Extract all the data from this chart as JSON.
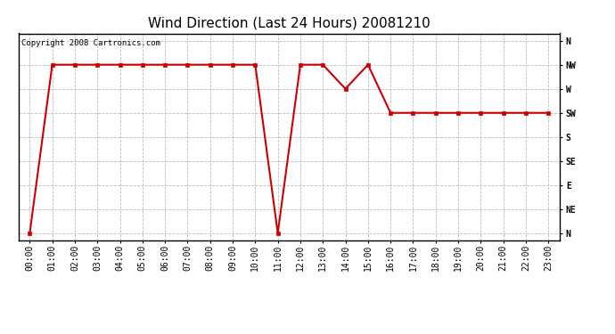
{
  "title": "Wind Direction (Last 24 Hours) 20081210",
  "copyright": "Copyright 2008 Cartronics.com",
  "background_color": "#ffffff",
  "plot_bg_color": "#ffffff",
  "line_color": "#cc0000",
  "marker_color": "#cc0000",
  "grid_color": "#bbbbbb",
  "directions": [
    "N",
    "NE",
    "E",
    "SE",
    "S",
    "SW",
    "W",
    "NW",
    "N"
  ],
  "direction_values": [
    0,
    1,
    2,
    3,
    4,
    5,
    6,
    7,
    8
  ],
  "hours": [
    0,
    1,
    2,
    3,
    4,
    5,
    6,
    7,
    8,
    9,
    10,
    11,
    12,
    13,
    14,
    15,
    16,
    17,
    18,
    19,
    20,
    21,
    22,
    23
  ],
  "wind_data": [
    0,
    7,
    7,
    7,
    7,
    7,
    7,
    7,
    7,
    7,
    7,
    0,
    7,
    7,
    6,
    7,
    5,
    5,
    5,
    5,
    5,
    5,
    5,
    5
  ],
  "xlim": [
    -0.5,
    23.5
  ],
  "ylim": [
    -0.3,
    8.3
  ],
  "title_fontsize": 11,
  "tick_fontsize": 7,
  "ylabel_fontsize": 8
}
